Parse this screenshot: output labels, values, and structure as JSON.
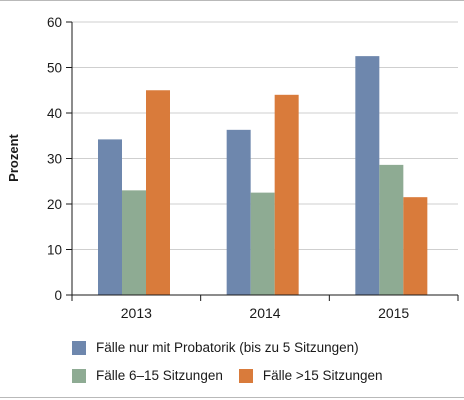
{
  "chart_data": {
    "type": "bar",
    "categories": [
      "2013",
      "2014",
      "2015"
    ],
    "series": [
      {
        "name": "Fälle nur mit Probatorik (bis zu 5 Sitzungen)",
        "values": [
          34.2,
          36.3,
          52.5
        ],
        "color": "#6e87ad"
      },
      {
        "name": "Fälle 6–15 Sitzungen",
        "values": [
          23.0,
          22.5,
          28.6
        ],
        "color": "#8eab93"
      },
      {
        "name": "Fälle >15 Sitzungen",
        "values": [
          45.0,
          44.0,
          21.5
        ],
        "color": "#d97b3b"
      }
    ],
    "ylabel": "Prozent",
    "xlabel": "",
    "ylim": [
      0,
      60
    ],
    "yticks": [
      0,
      10,
      20,
      30,
      40,
      50,
      60
    ],
    "grid": "horizontal",
    "legend_position": "bottom"
  }
}
